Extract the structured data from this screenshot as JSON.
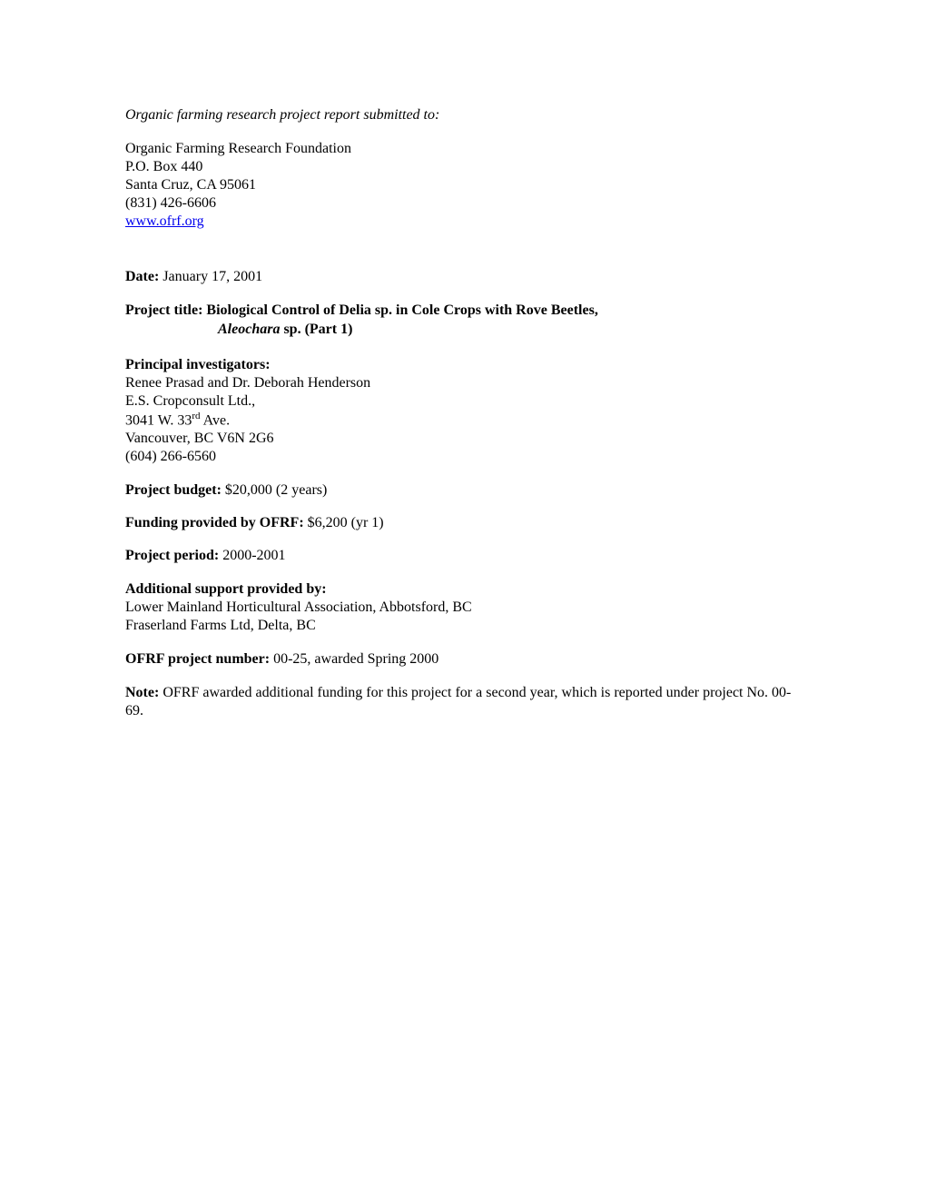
{
  "intro": "Organic farming research project report submitted to:",
  "address": {
    "org": "Organic Farming Research Foundation",
    "po": "P.O. Box 440",
    "city": "Santa Cruz, CA 95061",
    "phone": "(831) 426-6606",
    "url": "www.ofrf.org"
  },
  "date_label": "Date:",
  "date_value": " January 17, 2001",
  "title_prefix": "Project title:  ",
  "title_line1": "Biological Control of Delia sp. in Cole Crops with Rove Beetles,",
  "title_line2_italic": "Aleochara",
  "title_line2_rest": " sp. (Part 1)",
  "investigators": {
    "label": "Principal investigators:",
    "line1": "Renee Prasad and Dr. Deborah Henderson",
    "line2": "E.S. Cropconsult Ltd.,",
    "line3_a": "3041 W. 33",
    "line3_sup": "rd",
    "line3_b": " Ave.",
    "line4": "Vancouver, BC  V6N 2G6",
    "line5": "(604) 266-6560"
  },
  "budget_label": "Project budget:",
  "budget_value": " $20,000 (2 years)",
  "funding_label": "Funding provided by OFRF:",
  "funding_value": " $6,200 (yr 1)",
  "period_label": "Project period:",
  "period_value": " 2000-2001",
  "support": {
    "label": "Additional support  provided by:",
    "line1": "Lower Mainland Horticultural Association, Abbotsford, BC",
    "line2": "Fraserland Farms Ltd, Delta, BC"
  },
  "project_no_label": "OFRF project number:",
  "project_no_value": " 00-25, awarded Spring 2000",
  "note_label": "Note:",
  "note_value": " OFRF awarded additional funding for this project for a second year, which is reported under project No. 00-69."
}
